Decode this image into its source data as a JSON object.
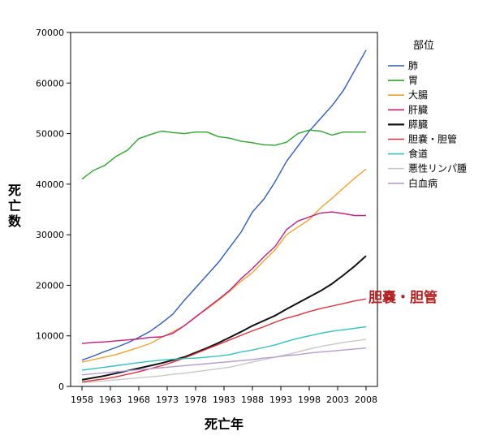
{
  "chart_data": {
    "type": "line",
    "xlabel": "死亡年",
    "ylabel": "死亡数",
    "legend_title": "部位",
    "legend_position": "right",
    "xlim": [
      1956,
      2010
    ],
    "ylim": [
      0,
      70000
    ],
    "x_ticks": [
      1958,
      1963,
      1968,
      1973,
      1978,
      1983,
      1988,
      1993,
      1998,
      2003,
      2008
    ],
    "y_ticks": [
      0,
      10000,
      20000,
      30000,
      40000,
      50000,
      60000,
      70000
    ],
    "grid": false,
    "annotation": {
      "text": "胆嚢・胆管",
      "color": "#b22222"
    },
    "x": [
      1958,
      1960,
      1962,
      1964,
      1966,
      1968,
      1970,
      1972,
      1974,
      1976,
      1978,
      1980,
      1982,
      1984,
      1986,
      1988,
      1990,
      1992,
      1994,
      1996,
      1998,
      2000,
      2002,
      2004,
      2006,
      2008
    ],
    "series": [
      {
        "name": "肺",
        "color": "#2d5cbf",
        "values": [
          5200,
          6000,
          6900,
          7700,
          8600,
          9700,
          10900,
          12500,
          14300,
          17000,
          19500,
          22000,
          24500,
          27500,
          30500,
          34500,
          37000,
          40500,
          44500,
          47500,
          50500,
          53000,
          55500,
          58500,
          62500,
          66500
        ]
      },
      {
        "name": "胃",
        "color": "#2ba82b",
        "values": [
          41000,
          42700,
          43700,
          45500,
          46700,
          49000,
          49800,
          50500,
          50200,
          50000,
          50300,
          50300,
          49400,
          49100,
          48500,
          48200,
          47800,
          47700,
          48300,
          50000,
          50700,
          50500,
          49700,
          50300,
          50300,
          50300
        ]
      },
      {
        "name": "大腸",
        "color": "#f4a22e",
        "values": [
          4800,
          5300,
          5800,
          6300,
          7000,
          7700,
          8500,
          9700,
          10800,
          12000,
          13800,
          15300,
          17000,
          18800,
          20800,
          22500,
          24800,
          27000,
          30000,
          31500,
          33000,
          35300,
          37200,
          39200,
          41200,
          43000
        ]
      },
      {
        "name": "肝臓",
        "color": "#c41d83",
        "values": [
          8500,
          8700,
          8800,
          9000,
          9200,
          9400,
          9700,
          9800,
          10500,
          12000,
          13700,
          15500,
          17200,
          19000,
          21300,
          23300,
          25600,
          27700,
          31000,
          32700,
          33500,
          34300,
          34500,
          34200,
          33800,
          33800
        ]
      },
      {
        "name": "膵臓",
        "color": "#111111",
        "values": [
          1300,
          1700,
          2100,
          2600,
          3100,
          3600,
          4100,
          4600,
          5200,
          5800,
          6700,
          7600,
          8600,
          9700,
          10800,
          12000,
          13000,
          14000,
          15300,
          16500,
          17700,
          18900,
          20300,
          22000,
          23800,
          25800
        ]
      },
      {
        "name": "胆嚢・胆管",
        "color": "#e0303a",
        "values": [
          900,
          1200,
          1500,
          1900,
          2400,
          2900,
          3500,
          4100,
          4800,
          5600,
          6500,
          7400,
          8300,
          9200,
          10100,
          11000,
          11800,
          12700,
          13500,
          14100,
          14800,
          15400,
          15900,
          16400,
          16900,
          17300
        ]
      },
      {
        "name": "食道",
        "color": "#2ec4c4",
        "values": [
          3200,
          3500,
          3800,
          4100,
          4400,
          4700,
          5000,
          5200,
          5400,
          5500,
          5600,
          5800,
          6000,
          6300,
          6800,
          7200,
          7700,
          8200,
          8900,
          9500,
          10000,
          10500,
          10900,
          11200,
          11500,
          11800
        ]
      },
      {
        "name": "悪性リンパ腫",
        "color": "#c8c8c8",
        "values": [
          700,
          900,
          1100,
          1300,
          1500,
          1700,
          1900,
          2100,
          2400,
          2600,
          2900,
          3200,
          3500,
          3800,
          4300,
          4800,
          5300,
          5800,
          6300,
          6800,
          7400,
          7900,
          8300,
          8700,
          9000,
          9300
        ]
      },
      {
        "name": "白血病",
        "color": "#b79bd6",
        "values": [
          2300,
          2500,
          2700,
          2900,
          3100,
          3300,
          3500,
          3700,
          3900,
          4100,
          4300,
          4500,
          4700,
          4900,
          5100,
          5300,
          5600,
          5800,
          6100,
          6300,
          6600,
          6800,
          7000,
          7200,
          7400,
          7600
        ]
      }
    ]
  }
}
